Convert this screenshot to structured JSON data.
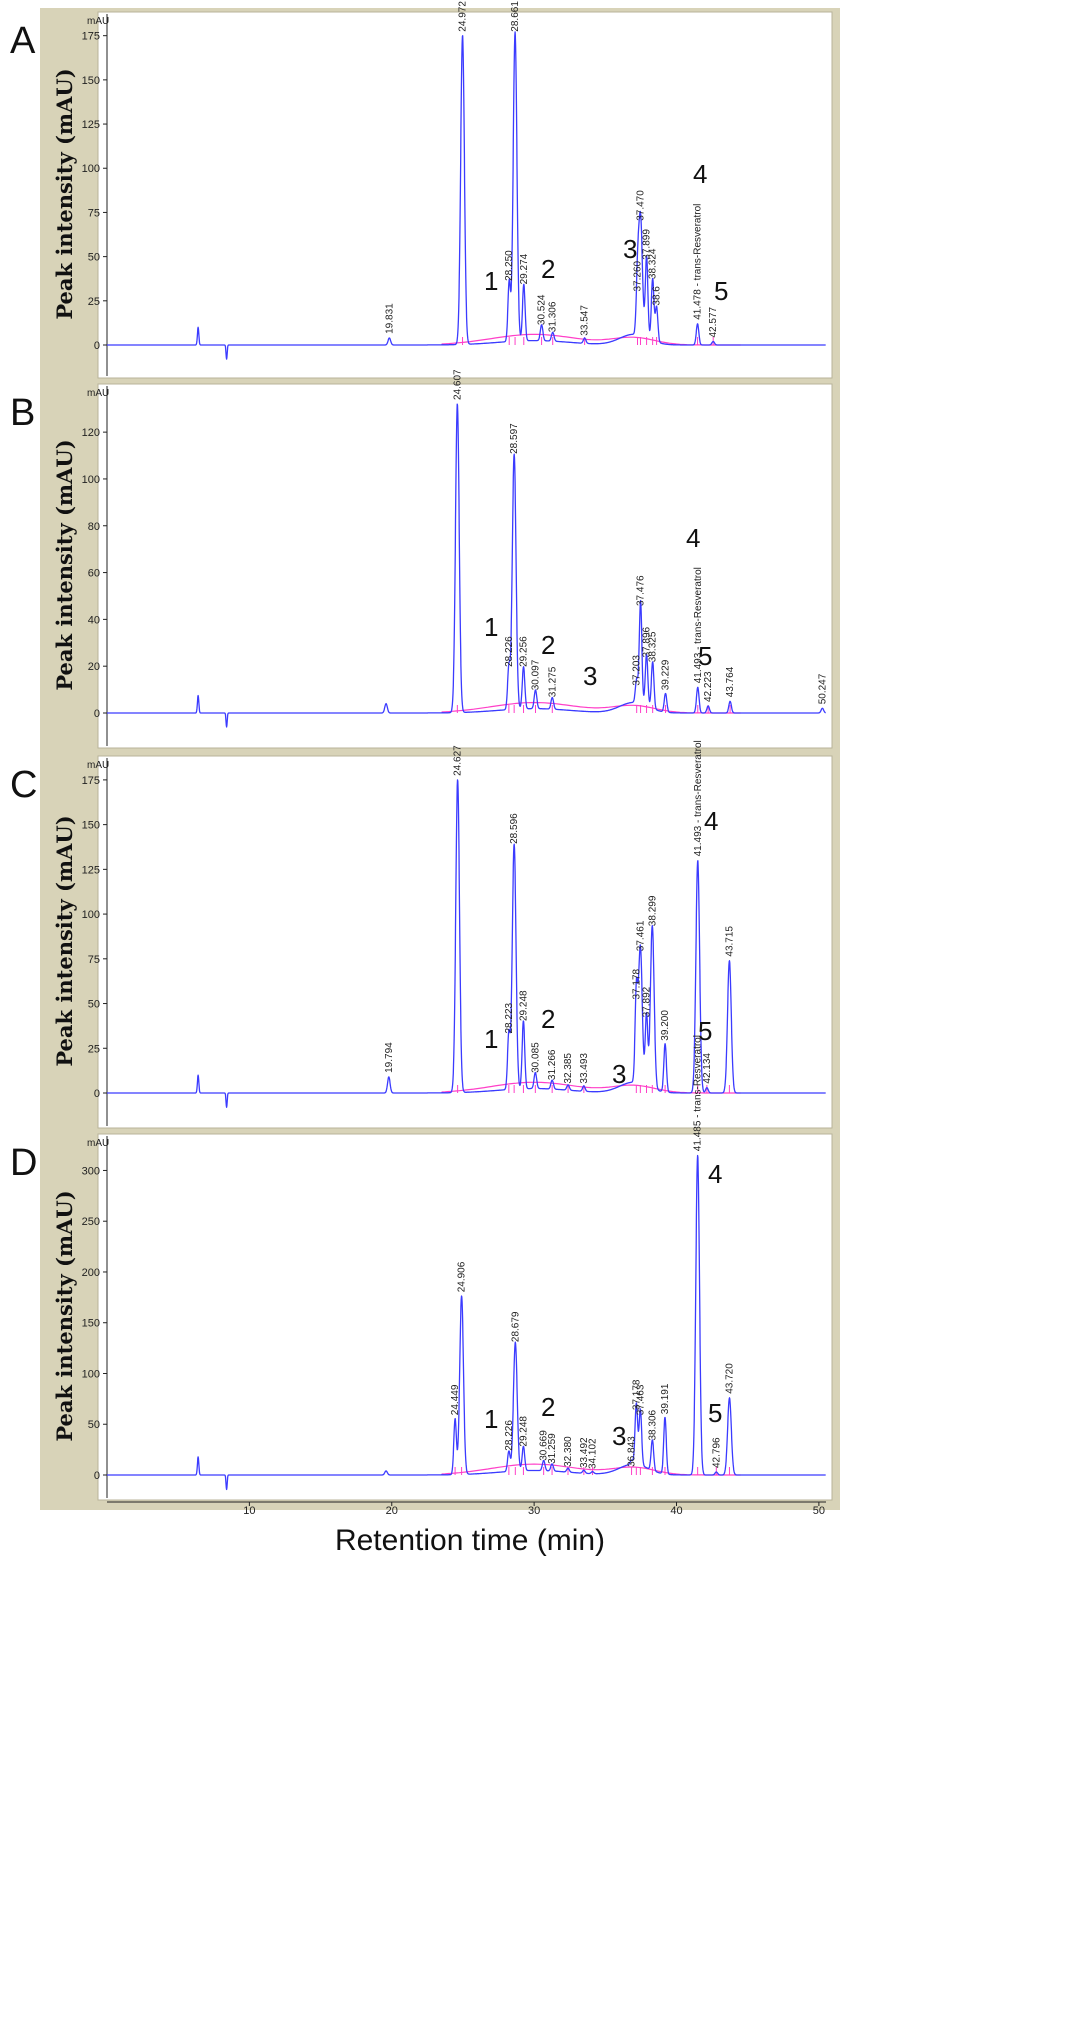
{
  "colors": {
    "frame": "#d8d3b8",
    "trace": "#3b3bff",
    "baseline": "#ff3fc8",
    "axis": "#222222"
  },
  "y_axis_label": "Peak intensity (mAU)",
  "x_axis_label": "Retention time (min)",
  "x_ticks": [
    "10",
    "20",
    "30",
    "40",
    "50"
  ],
  "chart_data": [
    {
      "type": "line",
      "panel": "A",
      "unit": "mAU",
      "xlim": [
        0,
        50.5
      ],
      "ylim": [
        -8,
        185
      ],
      "yticks": [
        "0",
        "25",
        "50",
        "75",
        "100",
        "125",
        "150",
        "175"
      ],
      "peak_numbers": [
        "1",
        "2",
        "3",
        "4",
        "5"
      ],
      "peaks": [
        {
          "rt": 19.831,
          "h": 4,
          "label": "19.831"
        },
        {
          "rt": 24.972,
          "h": 175,
          "label": "24.972"
        },
        {
          "rt": 28.25,
          "h": 34,
          "label": "28.250"
        },
        {
          "rt": 28.661,
          "h": 175,
          "label": "28.661"
        },
        {
          "rt": 29.274,
          "h": 32,
          "label": "29.274"
        },
        {
          "rt": 30.524,
          "h": 9,
          "label": "30.524"
        },
        {
          "rt": 31.306,
          "h": 5,
          "label": "31.306"
        },
        {
          "rt": 33.547,
          "h": 3,
          "label": "33.547"
        },
        {
          "rt": 37.26,
          "h": 28,
          "label": "37.260"
        },
        {
          "rt": 37.47,
          "h": 68,
          "label": "37.470"
        },
        {
          "rt": 37.899,
          "h": 46,
          "label": "37.899"
        },
        {
          "rt": 38.324,
          "h": 35,
          "label": "38.324"
        },
        {
          "rt": 38.6,
          "h": 20,
          "label": "38.6"
        },
        {
          "rt": 41.478,
          "h": 12,
          "label": "41.478 - trans-Resveratrol"
        },
        {
          "rt": 42.577,
          "h": 2,
          "label": "42.577"
        }
      ]
    },
    {
      "type": "line",
      "panel": "B",
      "unit": "mAU",
      "xlim": [
        0,
        50.5
      ],
      "ylim": [
        -8,
        138
      ],
      "yticks": [
        "0",
        "20",
        "40",
        "60",
        "80",
        "100",
        "120"
      ],
      "peak_numbers": [
        "1",
        "2",
        "3",
        "4",
        "5"
      ],
      "peaks": [
        {
          "rt": 19.6,
          "h": 4,
          "label": ""
        },
        {
          "rt": 24.607,
          "h": 132,
          "label": "24.607"
        },
        {
          "rt": 28.226,
          "h": 18,
          "label": "28.226"
        },
        {
          "rt": 28.597,
          "h": 109,
          "label": "28.597"
        },
        {
          "rt": 29.256,
          "h": 18,
          "label": "29.256"
        },
        {
          "rt": 30.097,
          "h": 8,
          "label": "30.097"
        },
        {
          "rt": 31.275,
          "h": 5,
          "label": "31.275"
        },
        {
          "rt": 37.203,
          "h": 10,
          "label": "37.203"
        },
        {
          "rt": 37.476,
          "h": 44,
          "label": "37.476"
        },
        {
          "rt": 37.896,
          "h": 22,
          "label": "37.896"
        },
        {
          "rt": 38.325,
          "h": 20,
          "label": "38.325"
        },
        {
          "rt": 39.229,
          "h": 8,
          "label": "39.229"
        },
        {
          "rt": 41.493,
          "h": 11,
          "label": "41.493 - trans-Resveratrol"
        },
        {
          "rt": 42.223,
          "h": 3,
          "label": "42.223"
        },
        {
          "rt": 43.764,
          "h": 5,
          "label": "43.764"
        },
        {
          "rt": 50.247,
          "h": 2,
          "label": "50.247"
        }
      ]
    },
    {
      "type": "line",
      "panel": "C",
      "unit": "mAU",
      "xlim": [
        0,
        50.5
      ],
      "ylim": [
        -8,
        185
      ],
      "yticks": [
        "0",
        "25",
        "50",
        "75",
        "100",
        "125",
        "150",
        "175"
      ],
      "peak_numbers": [
        "1",
        "2",
        "3",
        "4",
        "5"
      ],
      "peaks": [
        {
          "rt": 19.794,
          "h": 9,
          "label": "19.794"
        },
        {
          "rt": 24.627,
          "h": 175,
          "label": "24.627"
        },
        {
          "rt": 28.223,
          "h": 31,
          "label": "28.223"
        },
        {
          "rt": 28.596,
          "h": 137,
          "label": "28.596"
        },
        {
          "rt": 29.248,
          "h": 38,
          "label": "29.248"
        },
        {
          "rt": 30.085,
          "h": 9,
          "label": "30.085"
        },
        {
          "rt": 31.266,
          "h": 5,
          "label": "31.266"
        },
        {
          "rt": 32.385,
          "h": 3,
          "label": "32.385"
        },
        {
          "rt": 33.493,
          "h": 3,
          "label": "33.493"
        },
        {
          "rt": 37.178,
          "h": 50,
          "label": "37.178"
        },
        {
          "rt": 37.461,
          "h": 77,
          "label": "37.461"
        },
        {
          "rt": 37.892,
          "h": 40,
          "label": "37.892"
        },
        {
          "rt": 38.299,
          "h": 91,
          "label": "38.299"
        },
        {
          "rt": 39.2,
          "h": 27,
          "label": "39.200"
        },
        {
          "rt": 41.493,
          "h": 130,
          "label": "41.493 - trans-Resveratrol"
        },
        {
          "rt": 42.134,
          "h": 3,
          "label": "42.134"
        },
        {
          "rt": 43.715,
          "h": 74,
          "label": "43.715"
        }
      ]
    },
    {
      "type": "line",
      "panel": "D",
      "unit": "mAU",
      "xlim": [
        0,
        50.5
      ],
      "ylim": [
        -8,
        330
      ],
      "yticks": [
        "0",
        "50",
        "100",
        "150",
        "200",
        "250",
        "300"
      ],
      "peak_numbers": [
        "1",
        "2",
        "3",
        "4",
        "5"
      ],
      "peaks": [
        {
          "rt": 19.6,
          "h": 4,
          "label": ""
        },
        {
          "rt": 24.449,
          "h": 55,
          "label": "24.449"
        },
        {
          "rt": 24.906,
          "h": 176,
          "label": "24.906"
        },
        {
          "rt": 28.226,
          "h": 20,
          "label": "28.226"
        },
        {
          "rt": 28.679,
          "h": 127,
          "label": "28.679"
        },
        {
          "rt": 29.248,
          "h": 24,
          "label": "29.248"
        },
        {
          "rt": 30.669,
          "h": 10,
          "label": "30.669"
        },
        {
          "rt": 31.259,
          "h": 7,
          "label": "31.259"
        },
        {
          "rt": 32.38,
          "h": 4,
          "label": "32.380"
        },
        {
          "rt": 33.492,
          "h": 3,
          "label": "33.492"
        },
        {
          "rt": 34.102,
          "h": 2,
          "label": "34.102"
        },
        {
          "rt": 36.843,
          "h": 4,
          "label": "36.843"
        },
        {
          "rt": 37.178,
          "h": 60,
          "label": "37.178"
        },
        {
          "rt": 37.463,
          "h": 55,
          "label": "37.463"
        },
        {
          "rt": 38.306,
          "h": 30,
          "label": "38.306"
        },
        {
          "rt": 39.191,
          "h": 56,
          "label": "39.191"
        },
        {
          "rt": 41.485,
          "h": 315,
          "label": "41.485 - trans-Resveratrol"
        },
        {
          "rt": 42.796,
          "h": 3,
          "label": "42.796"
        },
        {
          "rt": 43.72,
          "h": 76,
          "label": "43.720"
        }
      ]
    }
  ]
}
